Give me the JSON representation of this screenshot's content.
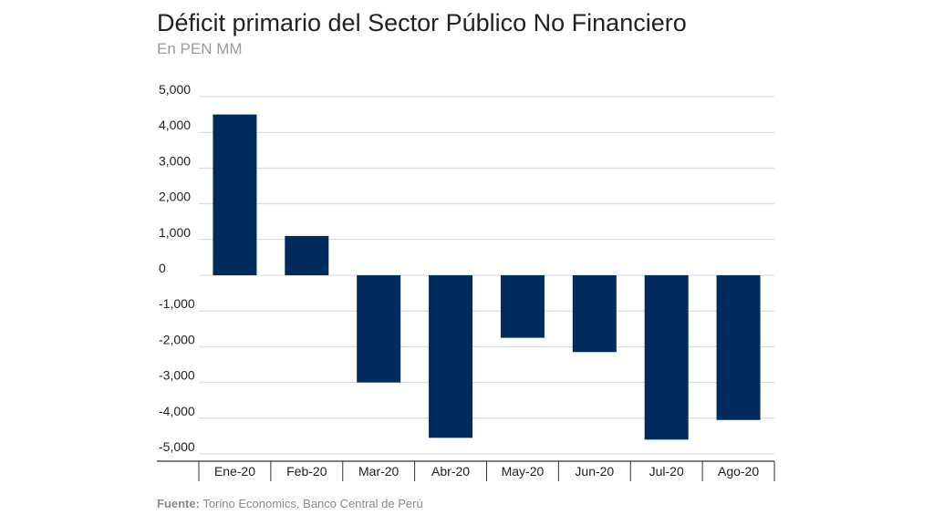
{
  "header": {
    "title": "Déficit primario del Sector Público No Financiero",
    "subtitle": "En PEN MM"
  },
  "footer": {
    "source_label": "Fuente:",
    "source_text": " Torino Economics, Banco Central de Perú"
  },
  "colors": {
    "bar": "#002b5c",
    "grid": "#d4d4d4",
    "axis": "#333333"
  },
  "chart_data": {
    "type": "bar",
    "title": "Déficit primario del Sector Público No Financiero",
    "subtitle": "En PEN MM",
    "categories": [
      "Ene-20",
      "Feb-20",
      "Mar-20",
      "Abr-20",
      "May-20",
      "Jun-20",
      "Jul-20",
      "Ago-20"
    ],
    "values": [
      4500,
      1100,
      -3000,
      -4550,
      -1750,
      -2150,
      -4600,
      -4050
    ],
    "yticks": [
      "5,000",
      "4,000",
      "3,000",
      "2,000",
      "1,000",
      "0",
      "-1,000",
      "-2,000",
      "-3,000",
      "-4,000",
      "-5,000"
    ],
    "ylim": [
      -5000,
      5000
    ],
    "grid": true,
    "legend": "none"
  }
}
